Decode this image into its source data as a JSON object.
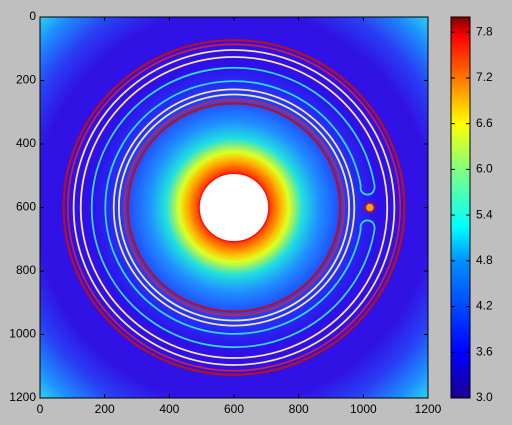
{
  "chart_data": {
    "type": "image",
    "xlim": [
      0,
      1200
    ],
    "ylim": [
      1200,
      0
    ],
    "xticks": [
      0,
      200,
      400,
      600,
      800,
      1000,
      1200
    ],
    "yticks": [
      0,
      200,
      400,
      600,
      800,
      1000,
      1200
    ],
    "colorbar": {
      "lim": [
        3,
        8
      ],
      "ticks": [
        {
          "value": 3,
          "label": "3.0"
        },
        3.6,
        {
          "value": 4.2,
          "label": "4.2"
        },
        4.8,
        5.4,
        {
          "value": 6,
          "label": "6.0"
        },
        6.6,
        7.2,
        7.8
      ]
    }
  }
}
